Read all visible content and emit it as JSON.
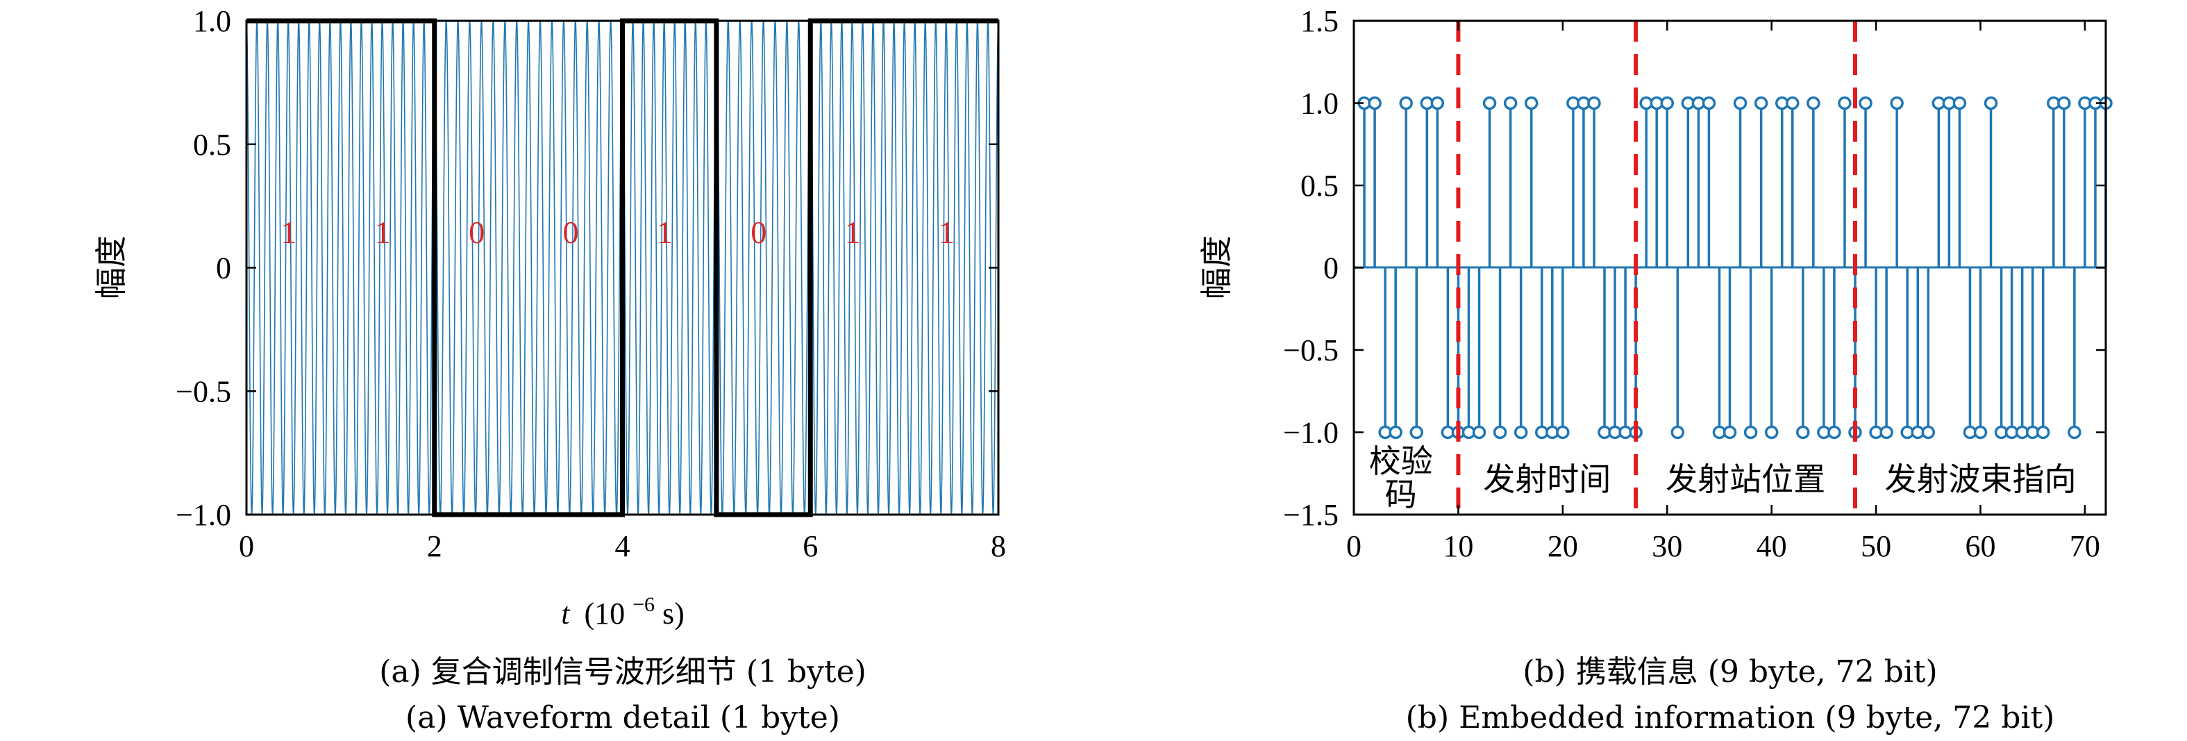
{
  "chart_data": [
    {
      "type": "line",
      "xlabel_var": "t",
      "xlabel_unit": "(10",
      "xlabel_exp": "−6",
      "xlabel_suffix": " s)",
      "ylabel": "幅度",
      "xlim": [
        0,
        8
      ],
      "ylim": [
        -1,
        1
      ],
      "xticks": [
        0,
        2,
        4,
        6,
        8
      ],
      "yticks": [
        -1.0,
        -0.5,
        0,
        0.5,
        1.0
      ],
      "ytick_labels": [
        "−1.0",
        "−0.5",
        "0",
        "0.5",
        "1.0"
      ],
      "series": [
        {
          "kind": "modulated_carrier",
          "color": "#1f77b4",
          "cycles_per_bit": [
            9,
            9,
            8,
            8,
            9,
            8,
            9,
            9
          ]
        },
        {
          "kind": "bit_envelope",
          "color": "#000000",
          "bits": [
            1,
            1,
            0,
            0,
            1,
            0,
            1,
            1
          ]
        }
      ],
      "bit_labels": [
        "1",
        "1",
        "0",
        "0",
        "1",
        "0",
        "1",
        "1"
      ],
      "bit_label_color": "#d62728",
      "caption_cn": "(a) 复合调制信号波形细节 (1 byte)",
      "caption_en": "(a) Waveform detail (1 byte)"
    },
    {
      "type": "stem",
      "ylabel": "幅度",
      "xlim": [
        0,
        72
      ],
      "ylim": [
        -1.5,
        1.5
      ],
      "xticks": [
        0,
        10,
        20,
        30,
        40,
        50,
        60,
        70
      ],
      "yticks": [
        -1.5,
        -1.0,
        -0.5,
        0,
        0.5,
        1.0,
        1.5
      ],
      "ytick_labels": [
        "−1.5",
        "−1.0",
        "−0.5",
        "0",
        "0.5",
        "1.0",
        "1.5"
      ],
      "color": "#1f77b4",
      "x": [
        1,
        2,
        3,
        4,
        5,
        6,
        7,
        8,
        9,
        10,
        11,
        12,
        13,
        14,
        15,
        16,
        17,
        18,
        19,
        20,
        21,
        22,
        23,
        24,
        25,
        26,
        27,
        28,
        29,
        30,
        31,
        32,
        33,
        34,
        35,
        36,
        37,
        38,
        39,
        40,
        41,
        42,
        43,
        44,
        45,
        46,
        47,
        48,
        49,
        50,
        51,
        52,
        53,
        54,
        55,
        56,
        57,
        58,
        59,
        60,
        61,
        62,
        63,
        64,
        65,
        66,
        67,
        68,
        69,
        70,
        71,
        72
      ],
      "values": [
        1,
        1,
        -1,
        -1,
        1,
        -1,
        1,
        1,
        -1,
        -1,
        -1,
        -1,
        1,
        -1,
        1,
        -1,
        1,
        -1,
        -1,
        -1,
        1,
        1,
        1,
        -1,
        -1,
        -1,
        -1,
        1,
        1,
        1,
        -1,
        1,
        1,
        1,
        -1,
        -1,
        1,
        -1,
        1,
        -1,
        1,
        1,
        -1,
        1,
        -1,
        -1,
        1,
        -1,
        1,
        -1,
        -1,
        1,
        -1,
        -1,
        -1,
        1,
        1,
        1,
        -1,
        -1,
        1,
        -1,
        -1,
        -1,
        -1,
        -1,
        1,
        1,
        -1,
        1,
        1,
        1
      ],
      "dividers": [
        10,
        27,
        48
      ],
      "divider_color": "#e41a1c",
      "segments": [
        {
          "label_line1": "校验",
          "label_line2": "码",
          "x_center": 4.5
        },
        {
          "label": "发射时间",
          "x_center": 18.5
        },
        {
          "label": "发射站位置",
          "x_center": 37.5
        },
        {
          "label": "发射波束指向",
          "x_center": 60.0
        }
      ],
      "caption_cn": "(b) 携载信息 (9 byte, 72 bit)",
      "caption_en": "(b) Embedded information (9 byte, 72 bit)"
    }
  ]
}
